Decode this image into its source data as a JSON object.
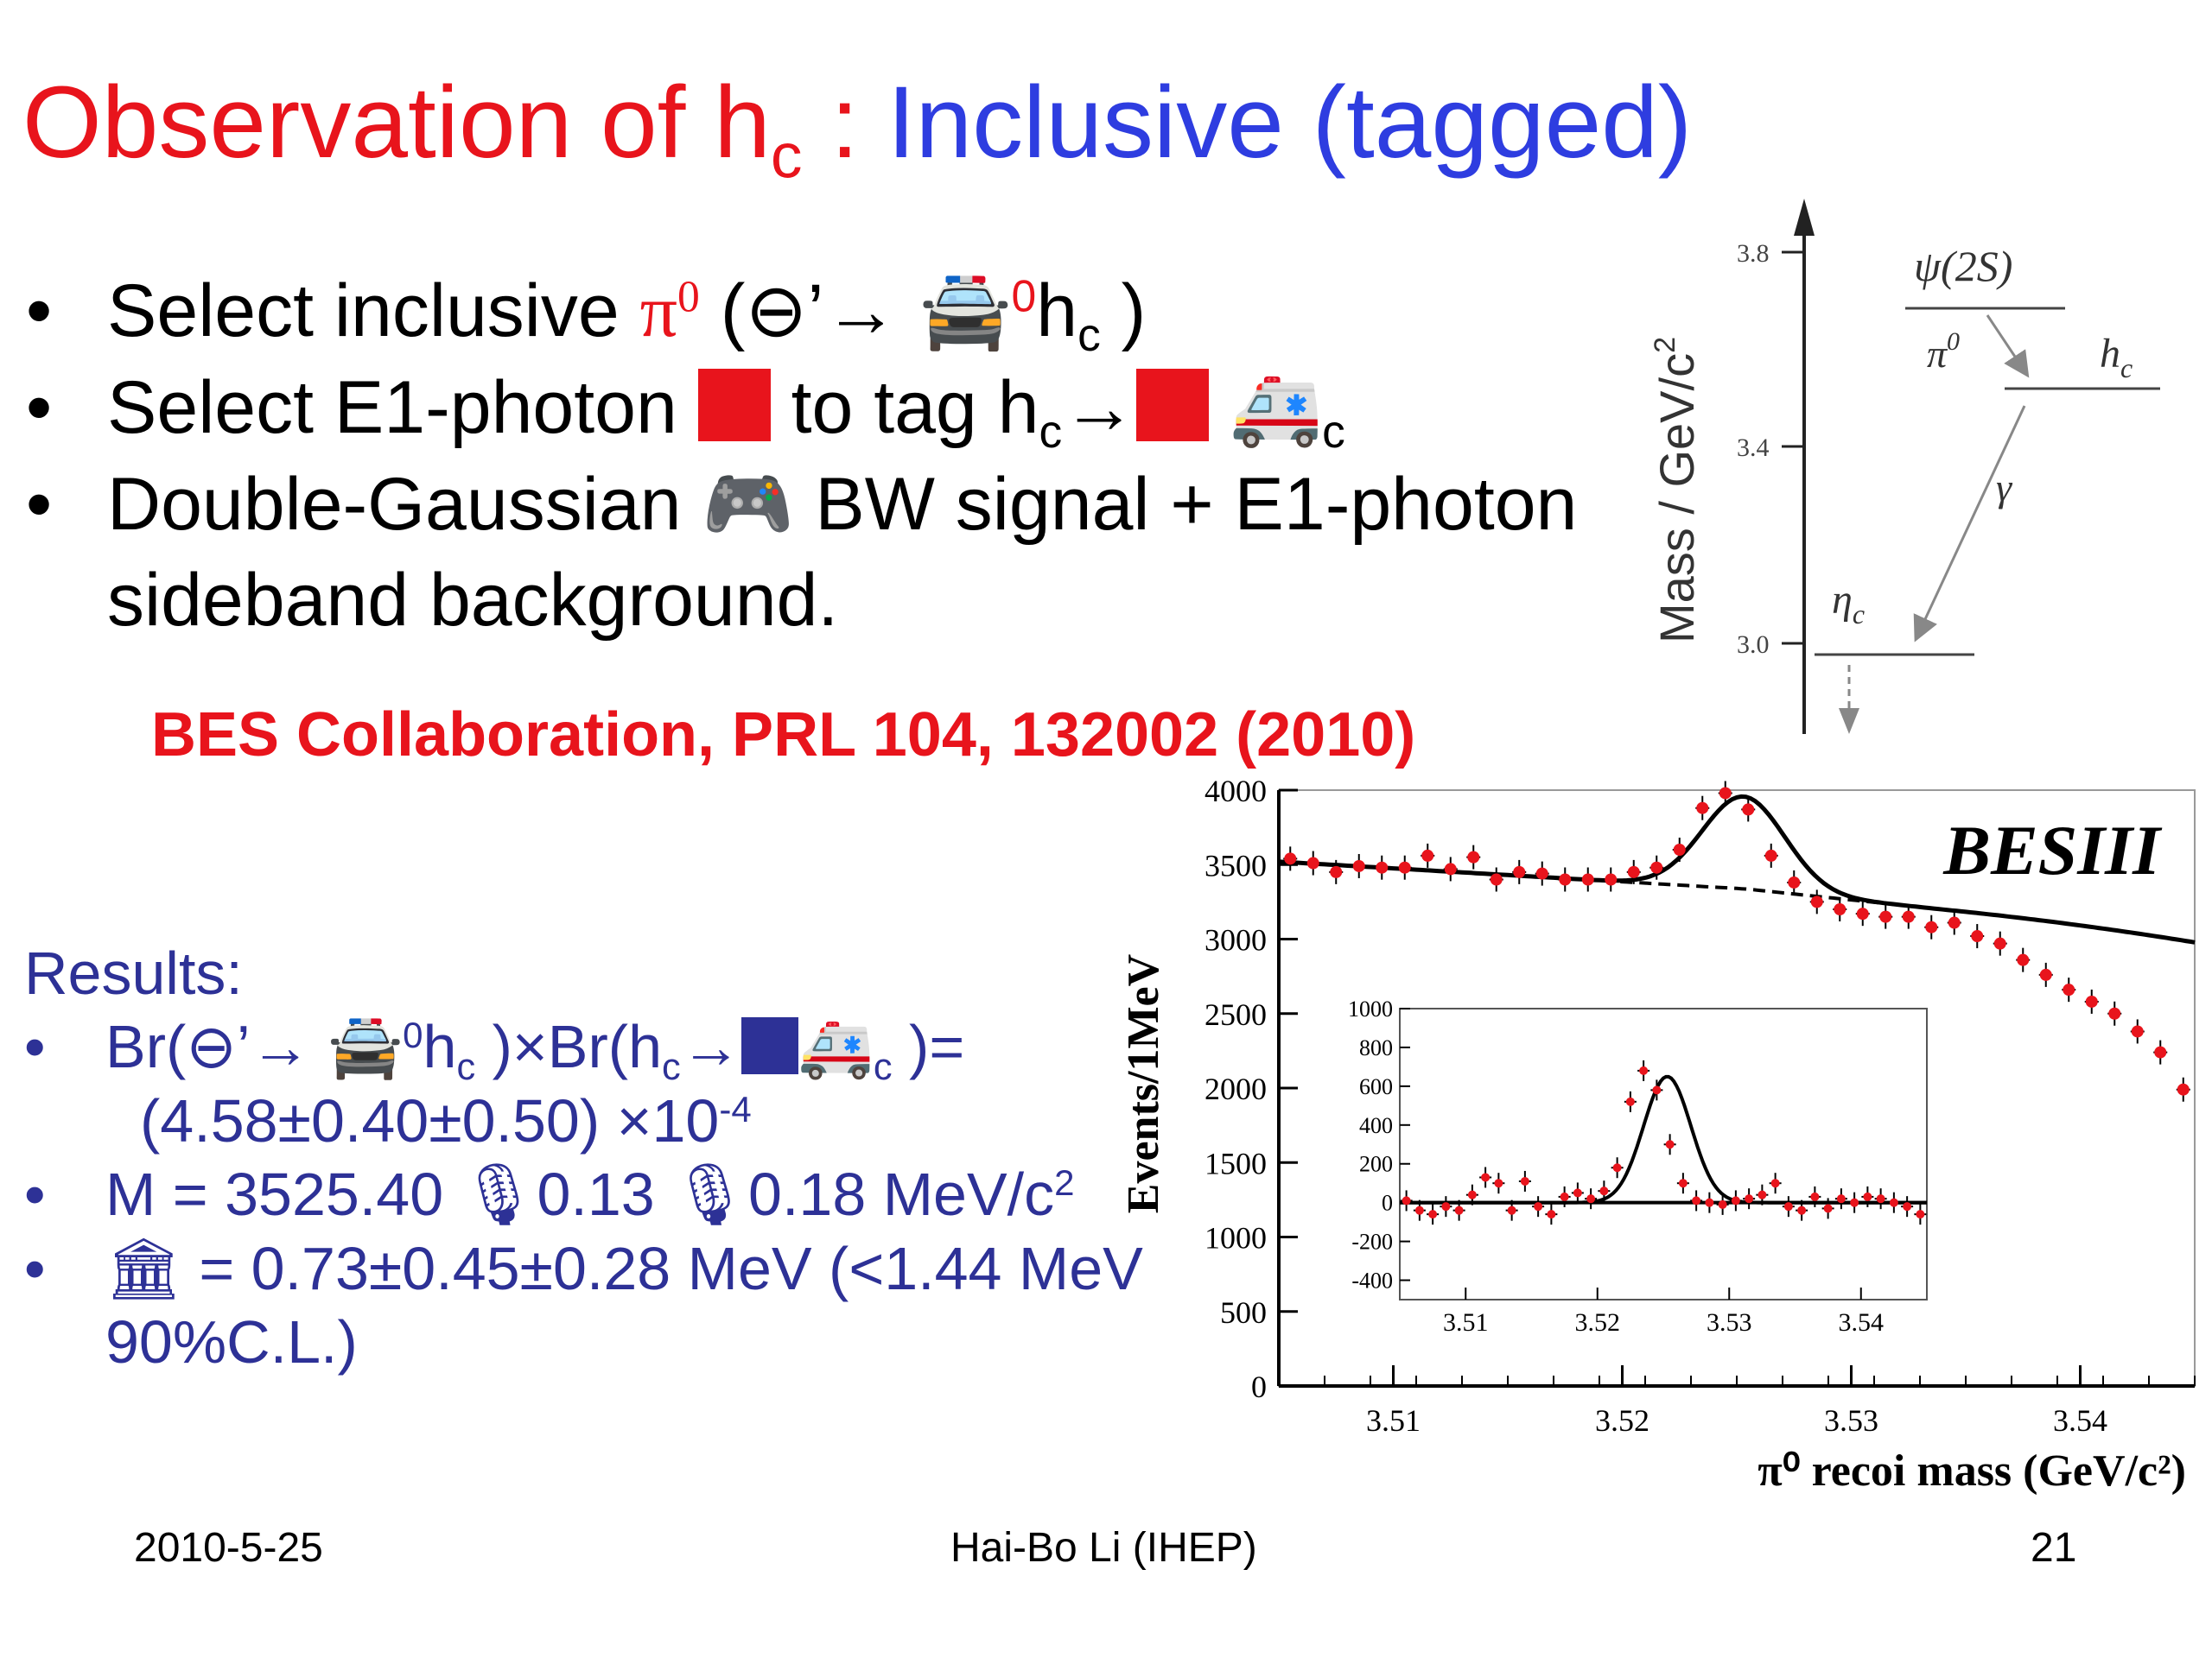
{
  "title": {
    "part1": "Observation of h",
    "sub": "c",
    "sep": " : ",
    "part2": "Inclusive (tagged)"
  },
  "bullets": {
    "dot": "•",
    "b1": {
      "a": "Select inclusive ",
      "pi": "π",
      "sup": "0",
      "b": " (⊖’→ ",
      "g": "🚔",
      "sup2": "0",
      "c": "h",
      "sub": "c",
      "d": " )"
    },
    "b2": {
      "a": "Select E1-photon ",
      "b": " to tag h",
      "sub": "c",
      "c": "→",
      "g": "🚑",
      "sub2": "c"
    },
    "b3": {
      "a": "Double-Gaussian ",
      "g": "🎮",
      "b": " BW signal + E1-photon sideband background."
    }
  },
  "reference": "BES Collaboration, PRL 104, 132002 (2010)",
  "results": {
    "heading": "Results:",
    "r1": {
      "a": "Br(⊖’→ ",
      "g1": "🚔",
      "sup": "0",
      "b": "h",
      "sub": "c",
      "c": " )×Br(h",
      "sub2": "c",
      "d": "→",
      "g2": "🚑",
      "sub3": "c",
      "e": " )=",
      "line2": "(4.58±0.40±0.50) ×10",
      "exp": "-4"
    },
    "r2": {
      "a": "M = 3525.40 ",
      "g": "🎙",
      "b": "0.13 ",
      "g2": "🎙",
      "c": "0.18 MeV/c",
      "sup": "2"
    },
    "r3": {
      "g": "🏛",
      "a": " = 0.73±0.45±0.28 MeV  (<1.44 MeV 90%C.L.)"
    }
  },
  "diagram": {
    "ylabel": "Mass  / GeV/c",
    "ylabel_sup": "2",
    "ticks": [
      "3.8",
      "3.4",
      "3.0"
    ],
    "levels": [
      "ψ(2S)",
      "h",
      "η"
    ],
    "level_subs": [
      "",
      "c",
      "c"
    ],
    "transitions": [
      "π",
      "γ"
    ],
    "transition_sup": "0"
  },
  "chart_data": {
    "type": "scatter",
    "experiment_label": "BESIII",
    "ylabel": "Events/1MeV",
    "xlabel": "π⁰ recoi mass (GeV/c²)",
    "xlim": [
      3.505,
      3.545
    ],
    "ylim": [
      0,
      4000
    ],
    "x_ticks": [
      "3.51",
      "3.52",
      "3.53",
      "3.54"
    ],
    "y_ticks": [
      "0",
      "500",
      "1000",
      "1500",
      "2000",
      "2500",
      "3000",
      "3500",
      "4000"
    ],
    "series": [
      {
        "x": [
          3.5055,
          3.5065,
          3.5075,
          3.5085,
          3.5095,
          3.5105,
          3.5115,
          3.5125,
          3.5135,
          3.5145,
          3.5155,
          3.5165,
          3.5175,
          3.5185,
          3.5195,
          3.5205,
          3.5215,
          3.5225,
          3.5235,
          3.5245,
          3.5255,
          3.5265,
          3.5275,
          3.5285,
          3.5295,
          3.5305,
          3.5315,
          3.5325,
          3.5335,
          3.5345,
          3.5355,
          3.5365,
          3.5375,
          3.5385,
          3.5395,
          3.5405,
          3.5415,
          3.5425,
          3.5435,
          3.5445
        ],
        "y": [
          3540,
          3510,
          3450,
          3490,
          3480,
          3480,
          3560,
          3470,
          3550,
          3400,
          3450,
          3440,
          3400,
          3400,
          3400,
          3450,
          3480,
          3600,
          3880,
          3980,
          3870,
          3560,
          3380,
          3250,
          3200,
          3170,
          3150,
          3150,
          3080,
          3110,
          3020,
          2970,
          2860,
          2760,
          2660,
          2580,
          2500,
          2380,
          2240,
          1990
        ]
      }
    ],
    "inset": {
      "xlim": [
        3.505,
        3.545
      ],
      "ylim": [
        -500,
        1000
      ],
      "x_ticks": [
        "3.51",
        "3.52",
        "3.53",
        "3.54"
      ],
      "y_ticks": [
        "1000",
        "800",
        "600",
        "400",
        "200",
        "0",
        "-200",
        "-400"
      ],
      "x": [
        3.5055,
        3.5065,
        3.5075,
        3.5085,
        3.5095,
        3.5105,
        3.5115,
        3.5125,
        3.5135,
        3.5145,
        3.5155,
        3.5165,
        3.5175,
        3.5185,
        3.5195,
        3.5205,
        3.5215,
        3.5225,
        3.5235,
        3.5245,
        3.5255,
        3.5265,
        3.5275,
        3.5285,
        3.5295,
        3.5305,
        3.5315,
        3.5325,
        3.5335,
        3.5345,
        3.5355,
        3.5365,
        3.5375,
        3.5385,
        3.5395,
        3.5405,
        3.5415,
        3.5425,
        3.5435,
        3.5445
      ],
      "y": [
        10,
        -40,
        -60,
        -20,
        -40,
        40,
        130,
        100,
        -40,
        110,
        -20,
        -60,
        30,
        50,
        20,
        60,
        180,
        520,
        680,
        580,
        300,
        100,
        10,
        0,
        -10,
        10,
        20,
        40,
        100,
        -20,
        -40,
        30,
        -30,
        20,
        0,
        30,
        20,
        0,
        -20,
        -60
      ]
    }
  },
  "footer": {
    "date": "2010-5-25",
    "author": "Hai-Bo Li (IHEP)",
    "page": "21"
  }
}
